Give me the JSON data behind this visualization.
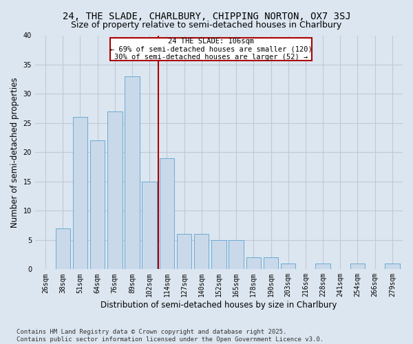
{
  "title1": "24, THE SLADE, CHARLBURY, CHIPPING NORTON, OX7 3SJ",
  "title2": "Size of property relative to semi-detached houses in Charlbury",
  "xlabel": "Distribution of semi-detached houses by size in Charlbury",
  "ylabel": "Number of semi-detached properties",
  "bar_labels": [
    "26sqm",
    "38sqm",
    "51sqm",
    "64sqm",
    "76sqm",
    "89sqm",
    "102sqm",
    "114sqm",
    "127sqm",
    "140sqm",
    "152sqm",
    "165sqm",
    "178sqm",
    "190sqm",
    "203sqm",
    "216sqm",
    "228sqm",
    "241sqm",
    "254sqm",
    "266sqm",
    "279sqm"
  ],
  "bar_values": [
    0,
    7,
    26,
    22,
    27,
    33,
    15,
    19,
    6,
    6,
    5,
    5,
    2,
    2,
    1,
    0,
    1,
    0,
    1,
    0,
    1
  ],
  "highlight_index": 6,
  "bar_color": "#c9d9ea",
  "bar_edge_color": "#6aaad4",
  "annotation_box_text": "24 THE SLADE: 106sqm\n← 69% of semi-detached houses are smaller (120)\n30% of semi-detached houses are larger (52) →",
  "annotation_box_edge_color": "#aa0000",
  "annotation_box_bg_color": "#ffffff",
  "vline_color": "#aa0000",
  "ylim": [
    0,
    40
  ],
  "yticks": [
    0,
    5,
    10,
    15,
    20,
    25,
    30,
    35,
    40
  ],
  "footer": "Contains HM Land Registry data © Crown copyright and database right 2025.\nContains public sector information licensed under the Open Government Licence v3.0.",
  "bg_color": "#dce6f0",
  "plot_bg_color": "#dce6f0",
  "grid_color": "#c0c8d4",
  "title1_fontsize": 10,
  "title2_fontsize": 9,
  "xlabel_fontsize": 8.5,
  "ylabel_fontsize": 8.5,
  "tick_fontsize": 7,
  "annotation_fontsize": 7.5,
  "footer_fontsize": 6.5
}
